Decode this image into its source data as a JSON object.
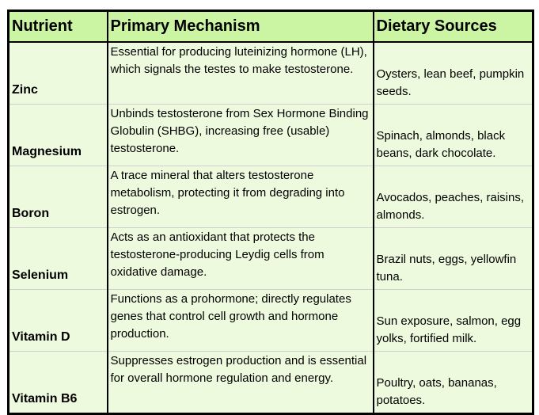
{
  "table": {
    "header": [
      "Nutrient",
      "Primary Mechanism",
      "Dietary Sources"
    ],
    "rows": [
      [
        "Zinc",
        "Essential for producing luteinizing hormone (LH), which signals the testes to make testosterone.",
        "Oysters, lean beef, pumpkin seeds."
      ],
      [
        "Magnesium",
        "Unbinds testosterone from Sex Hormone Binding Globulin (SHBG), increasing free (usable) testosterone.",
        "Spinach, almonds, black beans, dark chocolate."
      ],
      [
        "Boron",
        "A trace mineral that alters testosterone metabolism, protecting it from degrading into estrogen.",
        "Avocados, peaches, raisins, almonds."
      ],
      [
        "Selenium",
        "Acts as an antioxidant that protects the testosterone-producing Leydig cells from oxidative damage.",
        "Brazil nuts, eggs, yellowfin tuna."
      ],
      [
        "Vitamin D",
        "Functions as a prohormone; directly regulates genes that control cell growth and hormone production.",
        "Sun exposure, salmon, egg yolks, fortified milk."
      ],
      [
        "Vitamin B6",
        "Suppresses estrogen production and is essential for overall hormone regulation and energy.",
        "Poultry, oats, bananas, potatoes."
      ]
    ]
  }
}
